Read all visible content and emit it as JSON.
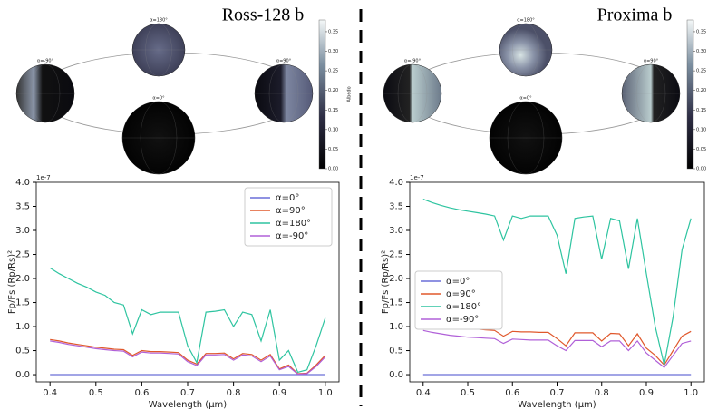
{
  "chart_data": [
    {
      "type": "line",
      "title": "Ross-128 b",
      "xlabel": "Wavelength (μm)",
      "ylabel": "Fp/Fs (Rp/Rs)²",
      "y_offset_label": "1e-7",
      "phase_labels": [
        "α=180°",
        "α=-90°",
        "α=90°",
        "α=0°"
      ],
      "colorbar": {
        "label": "Albedo",
        "clim": [
          0,
          0.38
        ],
        "ticks": [
          {
            "value": 0,
            "label": "0.00"
          },
          {
            "value": 0.05,
            "label": "0.05"
          },
          {
            "value": 0.1,
            "label": "0.10"
          },
          {
            "value": 0.15,
            "label": "0.15"
          },
          {
            "value": 0.2,
            "label": "0.20"
          },
          {
            "value": 0.25,
            "label": "0.25"
          },
          {
            "value": 0.3,
            "label": "0.30"
          },
          {
            "value": 0.35,
            "label": "0.35"
          }
        ]
      },
      "legend": "upper right",
      "x": [
        0.4,
        0.42,
        0.44,
        0.46,
        0.48,
        0.5,
        0.52,
        0.54,
        0.56,
        0.58,
        0.6,
        0.62,
        0.64,
        0.66,
        0.68,
        0.7,
        0.72,
        0.74,
        0.76,
        0.78,
        0.8,
        0.82,
        0.84,
        0.86,
        0.88,
        0.9,
        0.92,
        0.94,
        0.96,
        0.98,
        1.0
      ],
      "series": [
        {
          "name": "α=0°",
          "color": "#6a6fd8",
          "values": [
            0,
            0,
            0,
            0,
            0,
            0,
            0,
            0,
            0,
            0,
            0,
            0,
            0,
            0,
            0,
            0,
            0,
            0,
            0,
            0,
            0,
            0,
            0,
            0,
            0,
            0,
            0,
            0,
            0,
            0,
            0
          ]
        },
        {
          "name": "α=90°",
          "color": "#e0582c",
          "values": [
            0.73,
            0.7,
            0.66,
            0.63,
            0.6,
            0.57,
            0.55,
            0.53,
            0.52,
            0.4,
            0.5,
            0.48,
            0.48,
            0.47,
            0.46,
            0.3,
            0.22,
            0.44,
            0.44,
            0.45,
            0.33,
            0.44,
            0.42,
            0.3,
            0.42,
            0.12,
            0.2,
            0.02,
            0.03,
            0.2,
            0.4
          ]
        },
        {
          "name": "α=180°",
          "color": "#2ec4a0",
          "values": [
            2.22,
            2.1,
            2.0,
            1.9,
            1.82,
            1.72,
            1.65,
            1.5,
            1.45,
            0.85,
            1.35,
            1.25,
            1.3,
            1.3,
            1.3,
            0.6,
            0.25,
            1.3,
            1.32,
            1.35,
            1.0,
            1.3,
            1.25,
            0.7,
            1.35,
            0.3,
            0.5,
            0.05,
            0.1,
            0.6,
            1.18
          ]
        },
        {
          "name": "α=-90°",
          "color": "#b060d8",
          "values": [
            0.7,
            0.67,
            0.63,
            0.6,
            0.57,
            0.54,
            0.52,
            0.5,
            0.49,
            0.37,
            0.47,
            0.45,
            0.45,
            0.44,
            0.43,
            0.27,
            0.19,
            0.41,
            0.41,
            0.42,
            0.3,
            0.41,
            0.39,
            0.27,
            0.39,
            0.1,
            0.17,
            0.01,
            0.02,
            0.17,
            0.37
          ]
        }
      ],
      "xlim": [
        0.37,
        1.03
      ],
      "xticks": [
        0.4,
        0.5,
        0.6,
        0.7,
        0.8,
        0.9,
        {
          "value": 1.0,
          "label": "1.0"
        }
      ],
      "ylim": [
        -0.15,
        4.0
      ],
      "yticks": [
        {
          "value": 0,
          "label": "0.0"
        },
        0.5,
        {
          "value": 1,
          "label": "1.0"
        },
        1.5,
        {
          "value": 2,
          "label": "2.0"
        },
        2.5,
        {
          "value": 3,
          "label": "3.0"
        },
        3.5,
        {
          "value": 4,
          "label": "4.0"
        }
      ]
    },
    {
      "type": "line",
      "title": "Proxima b",
      "xlabel": "Wavelength (μm)",
      "ylabel": "Fp/Fs (Rp/Rs)²",
      "y_offset_label": "1e-7",
      "phase_labels": [
        "α=180°",
        "α=-90°",
        "α=90°",
        "α=0°"
      ],
      "colorbar": {
        "clim": [
          0,
          0.38
        ],
        "ticks": [
          {
            "value": 0,
            "label": "0.00"
          },
          {
            "value": 0.05,
            "label": "0.05"
          },
          {
            "value": 0.1,
            "label": "0.10"
          },
          {
            "value": 0.15,
            "label": "0.15"
          },
          {
            "value": 0.2,
            "label": "0.20"
          },
          {
            "value": 0.25,
            "label": "0.25"
          },
          {
            "value": 0.3,
            "label": "0.30"
          },
          {
            "value": 0.35,
            "label": "0.35"
          }
        ]
      },
      "legend": "center left",
      "x": [
        0.4,
        0.42,
        0.44,
        0.46,
        0.48,
        0.5,
        0.52,
        0.54,
        0.56,
        0.58,
        0.6,
        0.62,
        0.64,
        0.66,
        0.68,
        0.7,
        0.72,
        0.74,
        0.76,
        0.78,
        0.8,
        0.82,
        0.84,
        0.86,
        0.88,
        0.9,
        0.92,
        0.94,
        0.96,
        0.98,
        1.0
      ],
      "series": [
        {
          "name": "α=0°",
          "color": "#6a6fd8",
          "values": [
            0,
            0,
            0,
            0,
            0,
            0,
            0,
            0,
            0,
            0,
            0,
            0,
            0,
            0,
            0,
            0,
            0,
            0,
            0,
            0,
            0,
            0,
            0,
            0,
            0,
            0,
            0,
            0,
            0,
            0,
            0
          ]
        },
        {
          "name": "α=90°",
          "color": "#e0582c",
          "values": [
            1.07,
            1.04,
            1.02,
            1.0,
            0.98,
            0.96,
            0.95,
            0.93,
            0.92,
            0.8,
            0.9,
            0.89,
            0.89,
            0.88,
            0.88,
            0.75,
            0.6,
            0.87,
            0.87,
            0.87,
            0.7,
            0.86,
            0.85,
            0.6,
            0.85,
            0.55,
            0.4,
            0.2,
            0.5,
            0.8,
            0.9
          ]
        },
        {
          "name": "α=180°",
          "color": "#2ec4a0",
          "values": [
            3.65,
            3.58,
            3.52,
            3.47,
            3.43,
            3.4,
            3.37,
            3.34,
            3.3,
            2.8,
            3.3,
            3.25,
            3.3,
            3.3,
            3.3,
            2.9,
            2.1,
            3.25,
            3.28,
            3.3,
            2.4,
            3.25,
            3.2,
            2.2,
            3.25,
            2.1,
            1.0,
            0.2,
            1.2,
            2.6,
            3.25
          ]
        },
        {
          "name": "α=-90°",
          "color": "#b060d8",
          "values": [
            0.92,
            0.88,
            0.85,
            0.82,
            0.8,
            0.78,
            0.77,
            0.76,
            0.75,
            0.65,
            0.74,
            0.73,
            0.72,
            0.72,
            0.72,
            0.6,
            0.5,
            0.71,
            0.71,
            0.71,
            0.58,
            0.7,
            0.7,
            0.5,
            0.7,
            0.45,
            0.3,
            0.15,
            0.4,
            0.65,
            0.7
          ]
        }
      ],
      "xlim": [
        0.37,
        1.03
      ],
      "xticks": [
        0.4,
        0.5,
        0.6,
        0.7,
        0.8,
        0.9,
        {
          "value": 1.0,
          "label": "1.0"
        }
      ],
      "ylim": [
        -0.15,
        4.0
      ],
      "yticks": [
        {
          "value": 0,
          "label": "0.0"
        },
        0.5,
        {
          "value": 1,
          "label": "1.0"
        },
        1.5,
        {
          "value": 2,
          "label": "2.0"
        },
        2.5,
        {
          "value": 3,
          "label": "3.0"
        },
        3.5,
        {
          "value": 4,
          "label": "4.0"
        }
      ]
    }
  ]
}
